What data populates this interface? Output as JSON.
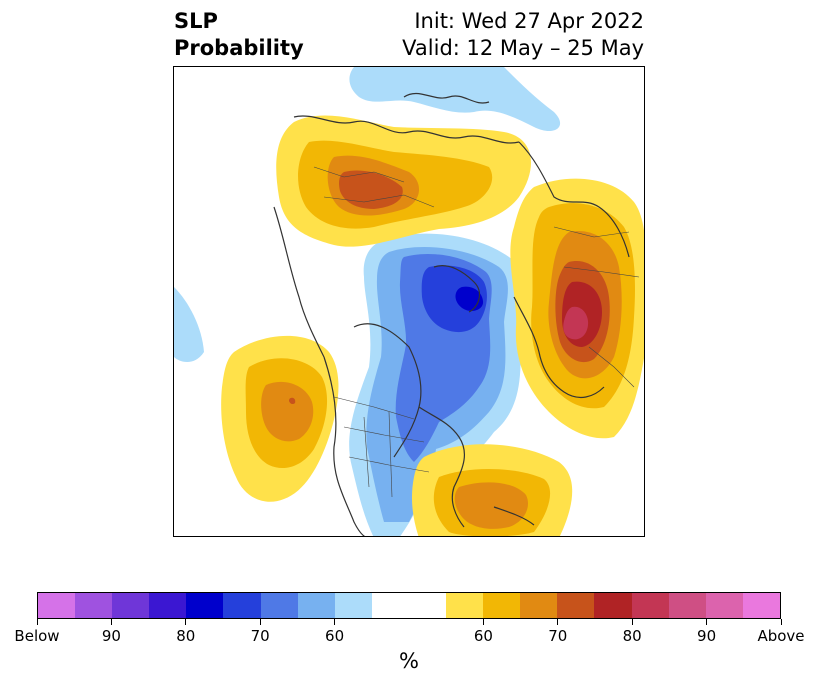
{
  "title": {
    "left_line1": "SLP",
    "left_line2": "Probability",
    "right_line1": "Init: Wed 27 Apr 2022",
    "right_line2": "Valid: 12 May – 25 May"
  },
  "colorbar": {
    "unit": "%",
    "tick_labels": [
      "Below",
      "90",
      "80",
      "70",
      "60",
      "60",
      "70",
      "80",
      "90",
      "Above"
    ],
    "colors": [
      "#d572e8",
      "#9f52e0",
      "#6f36d8",
      "#3b17d2",
      "#0000cc",
      "#2540db",
      "#4f79e6",
      "#77b1f0",
      "#acdcfa",
      "#ffffff",
      "#ffe14a",
      "#f2b705",
      "#e18a12",
      "#c7531b",
      "#b02325",
      "#c33654",
      "#cf4f84",
      "#dc63ad",
      "#ea78de"
    ]
  },
  "map": {
    "projection": "north-polar-stereographic",
    "colors": {
      "below_60": "#acdcfa",
      "below_70": "#77b1f0",
      "below_75": "#4f79e6",
      "below_80": "#2540db",
      "below_90": "#0000cc",
      "above_60": "#ffe14a",
      "above_65": "#f2b705",
      "above_70": "#e18a12",
      "above_75": "#c7531b",
      "above_80": "#b02325",
      "above_85": "#c33654",
      "above_90": "#cf4f84",
      "coastline": "#333333",
      "borders": "#444444"
    }
  }
}
